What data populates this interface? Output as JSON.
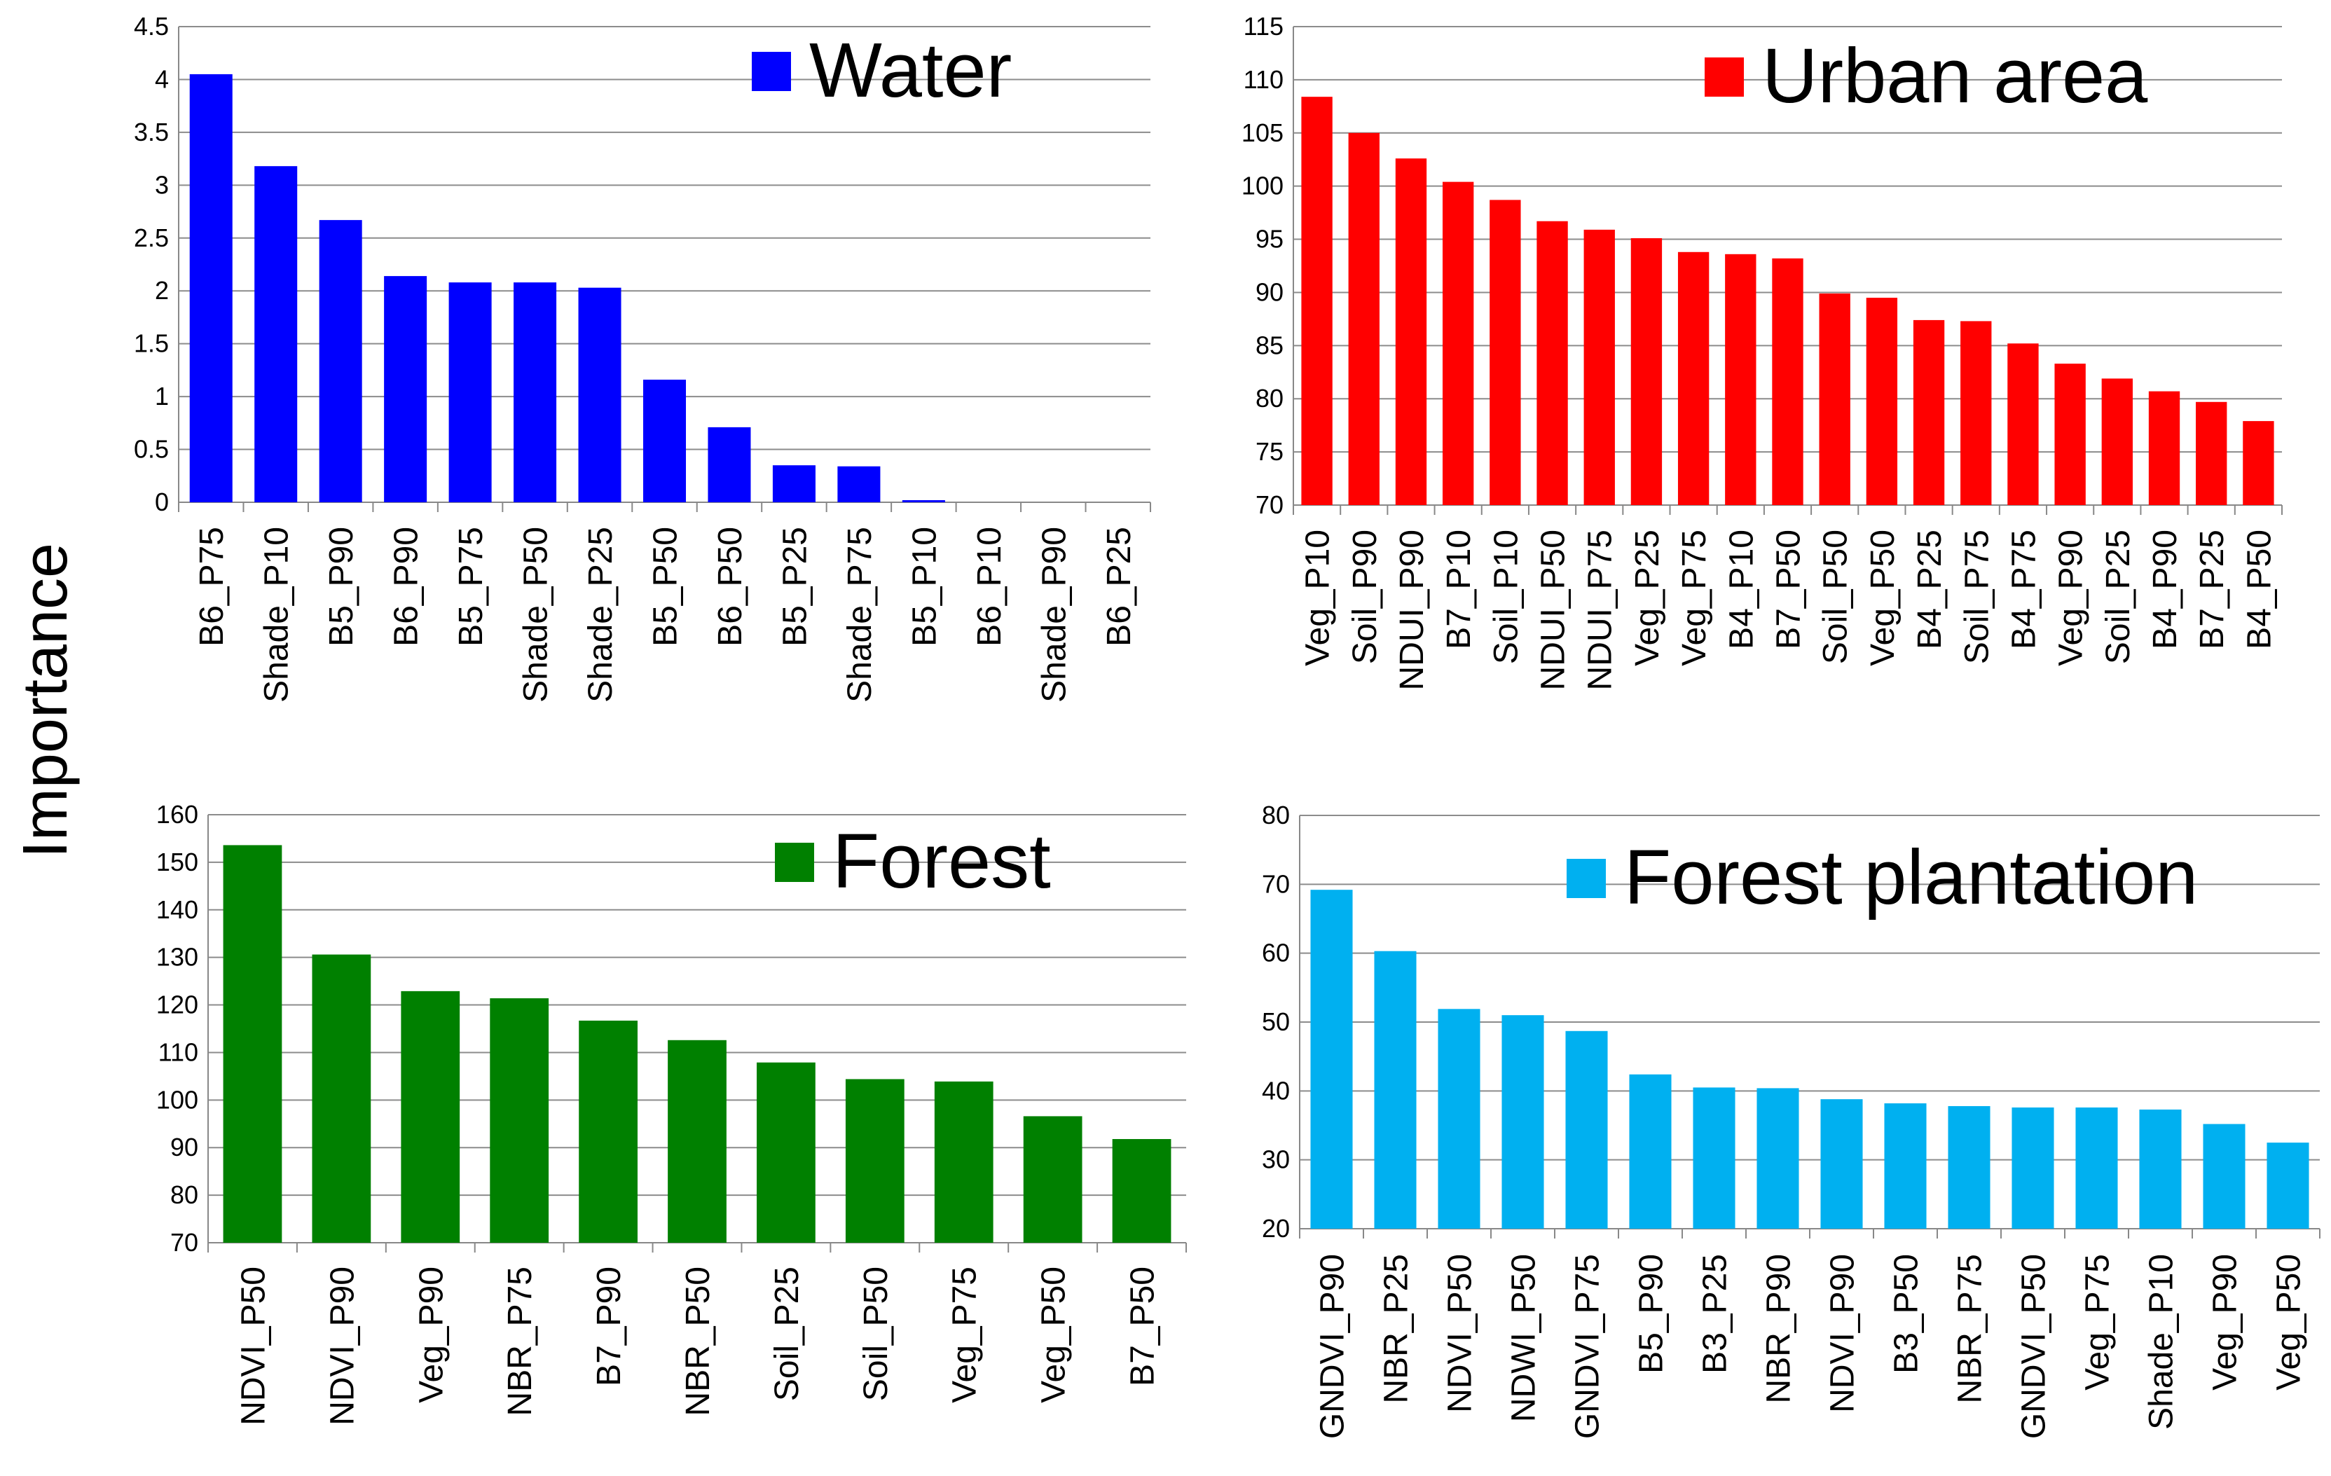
{
  "ylabel": "Importance",
  "chart_data": [
    {
      "type": "bar",
      "title": "Water",
      "legend": "Water",
      "color": "#0000FF",
      "ylabel": "Importance",
      "ylim": [
        0,
        4.5
      ],
      "yticks": [
        0,
        0.5,
        1,
        1.5,
        2,
        2.5,
        3,
        3.5,
        4,
        4.5
      ],
      "ytick_labels": [
        "0",
        "0.5",
        "1",
        "1.5",
        "2",
        "2.5",
        "3",
        "3.5",
        "4",
        "4.5"
      ],
      "categories": [
        "B6_P75",
        "Shade_P10",
        "B5_P90",
        "B6_P90",
        "B5_P75",
        "Shade_P50",
        "Shade_P25",
        "B5_P50",
        "B6_P50",
        "B5_P25",
        "Shade_P75",
        "B5_P10",
        "B6_P10",
        "Shade_P90",
        "B6_P25"
      ],
      "values": [
        4.05,
        3.18,
        2.67,
        2.14,
        2.08,
        2.08,
        2.03,
        1.16,
        0.71,
        0.35,
        0.34,
        0.02,
        0,
        0,
        0
      ]
    },
    {
      "type": "bar",
      "title": "Urban area",
      "legend": "Urban area",
      "color": "#FF0000",
      "ylabel": "Importance",
      "ylim": [
        70,
        115
      ],
      "yticks": [
        70,
        75,
        80,
        85,
        90,
        95,
        100,
        105,
        110,
        115
      ],
      "ytick_labels": [
        "70",
        "75",
        "80",
        "85",
        "90",
        "95",
        "100",
        "105",
        "110",
        "115"
      ],
      "categories": [
        "Veg_P10",
        "Soil_P90",
        "NDUI_P90",
        "B7_P10",
        "Soil_P10",
        "NDUI_P50",
        "NDUI_P75",
        "Veg_P25",
        "Veg_P75",
        "B4_P10",
        "B7_P50",
        "Soil_P50",
        "Veg_P50",
        "B4_P25",
        "Soil_P75",
        "B4_P75",
        "Veg_P90",
        "Soil_P25",
        "B4_P90",
        "B7_P25",
        "B4_P50"
      ],
      "values": [
        108.4,
        105.0,
        102.6,
        100.4,
        98.7,
        96.7,
        95.9,
        95.1,
        93.8,
        93.6,
        93.2,
        89.9,
        89.5,
        87.4,
        87.3,
        85.2,
        83.3,
        81.9,
        80.7,
        79.7,
        77.9
      ]
    },
    {
      "type": "bar",
      "title": "Forest",
      "legend": "Forest",
      "color": "#008000",
      "ylabel": "Importance",
      "ylim": [
        70,
        160
      ],
      "yticks": [
        70,
        80,
        90,
        100,
        110,
        120,
        130,
        140,
        150,
        160
      ],
      "ytick_labels": [
        "70",
        "80",
        "90",
        "100",
        "110",
        "120",
        "130",
        "140",
        "150",
        "160"
      ],
      "categories": [
        "NDVI_P50",
        "NDVI_P90",
        "Veg_P90",
        "NBR_P75",
        "B7_P90",
        "NBR_P50",
        "Soil_P25",
        "Soil_P50",
        "Veg_P75",
        "Veg_P50",
        "B7_P50"
      ],
      "values": [
        153.6,
        130.6,
        122.9,
        121.4,
        116.7,
        112.6,
        107.9,
        104.4,
        103.9,
        96.6,
        91.8
      ]
    },
    {
      "type": "bar",
      "title": "Forest plantation",
      "legend": "Forest plantation",
      "color": "#00B0F0",
      "ylabel": "Importance",
      "ylim": [
        20,
        80
      ],
      "yticks": [
        20,
        30,
        40,
        50,
        60,
        70,
        80
      ],
      "ytick_labels": [
        "20",
        "30",
        "40",
        "50",
        "60",
        "70",
        "80"
      ],
      "categories": [
        "GNDVI_P90",
        "NBR_P25",
        "NDVI_P50",
        "NDWI_P50",
        "GNDVI_P75",
        "B5_P90",
        "B3_P25",
        "NBR_P90",
        "NDVI_P90",
        "B3_P50",
        "NBR_P75",
        "GNDVI_P50",
        "Veg_P75",
        "Shade_P10",
        "Veg_P90",
        "Veg_P50"
      ],
      "values": [
        69.2,
        60.3,
        51.9,
        51.0,
        48.7,
        42.4,
        40.5,
        40.4,
        38.8,
        38.2,
        37.8,
        37.6,
        37.6,
        37.3,
        35.2,
        32.5
      ]
    }
  ]
}
